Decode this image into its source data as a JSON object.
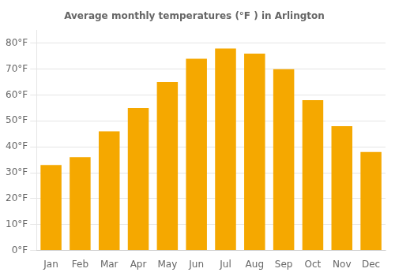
{
  "chart_data": {
    "type": "bar",
    "title": "Average monthly temperatures (°F ) in Arlington",
    "categories": [
      "Jan",
      "Feb",
      "Mar",
      "Apr",
      "May",
      "Jun",
      "Jul",
      "Aug",
      "Sep",
      "Oct",
      "Nov",
      "Dec"
    ],
    "values": [
      33,
      36,
      46,
      55,
      65,
      74,
      78,
      76,
      70,
      58,
      48,
      38
    ],
    "color": "#F5A800",
    "ylim": [
      0,
      85
    ],
    "yticks": [
      {
        "value": 0,
        "label": "0°F"
      },
      {
        "value": 10,
        "label": "10°F"
      },
      {
        "value": 20,
        "label": "20°F"
      },
      {
        "value": 30,
        "label": "30°F"
      },
      {
        "value": 40,
        "label": "40°F"
      },
      {
        "value": 50,
        "label": "50°F"
      },
      {
        "value": 60,
        "label": "60°F"
      },
      {
        "value": 70,
        "label": "70°F"
      },
      {
        "value": 80,
        "label": "80°F"
      }
    ],
    "grid": true
  }
}
